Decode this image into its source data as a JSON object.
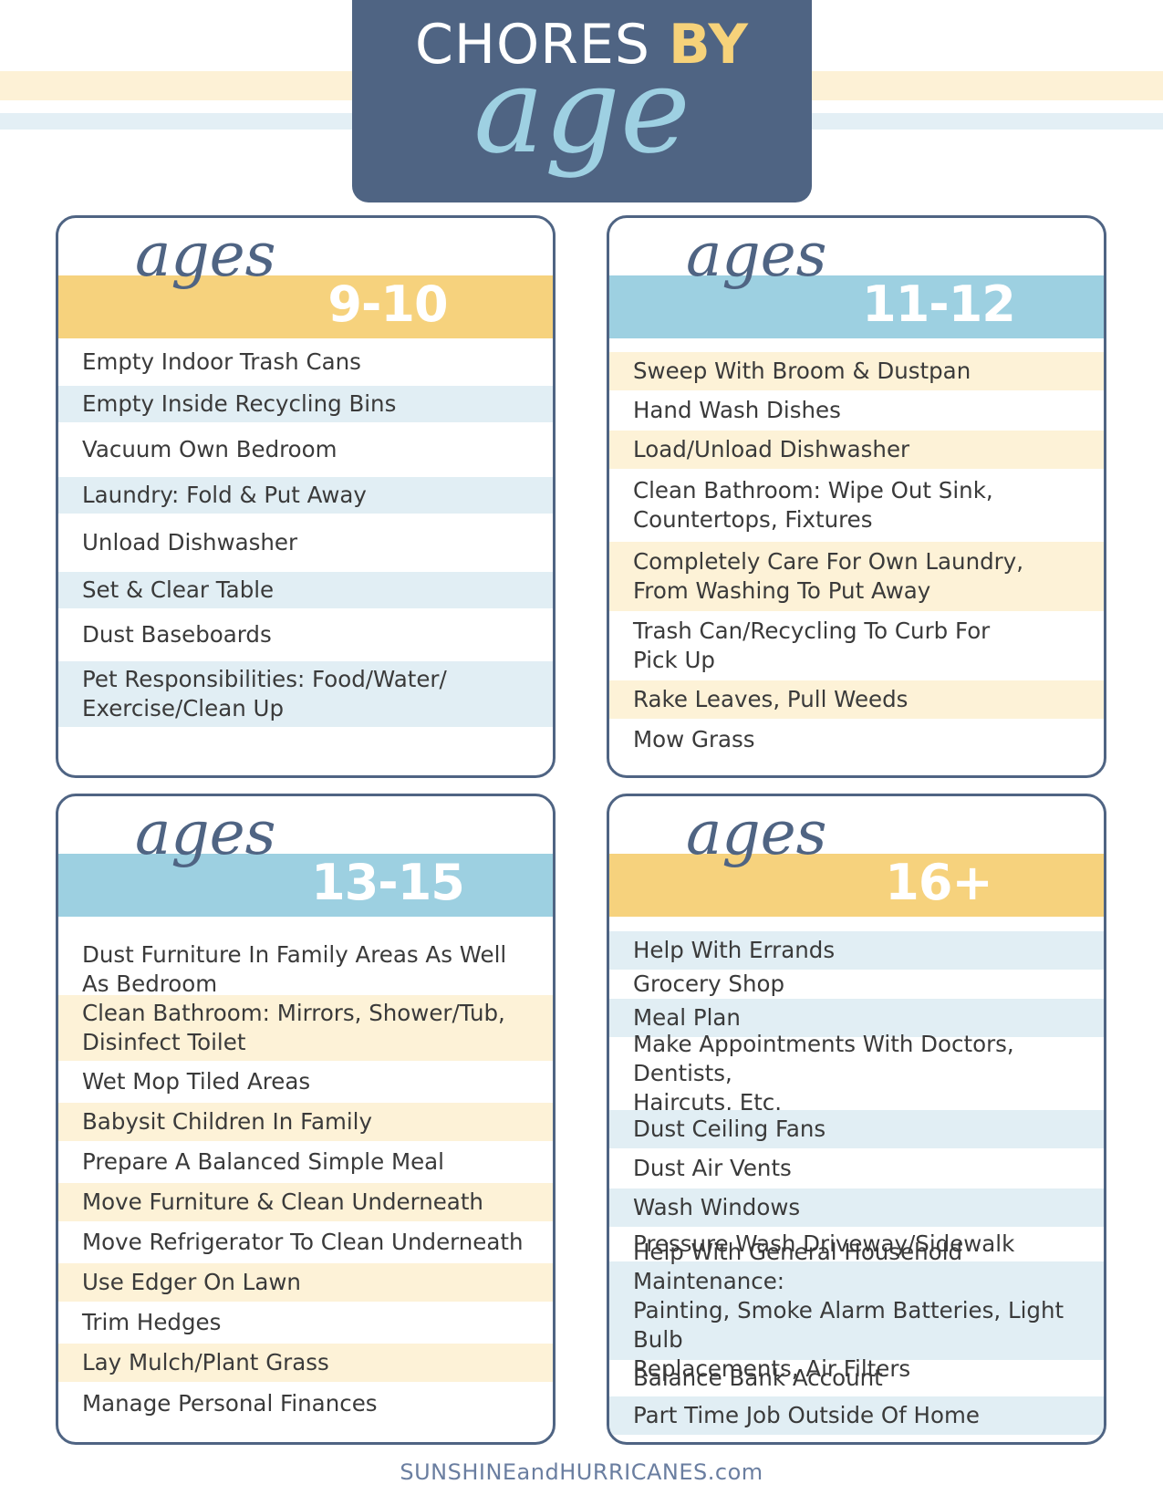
{
  "header": {
    "title_main": "CHORES",
    "title_accent": "BY",
    "title_script": "age"
  },
  "colors": {
    "navy": "#4f6483",
    "yellow": "#f6d27d",
    "blue": "#9dd0e1",
    "row_blue": "#e1eef4",
    "row_yellow": "#fdf2d7"
  },
  "sections": [
    {
      "script": "ages",
      "range": "9-10",
      "band": "yellow",
      "items": [
        "Empty Indoor Trash Cans",
        "Empty Inside Recycling Bins",
        "Vacuum Own Bedroom",
        "Laundry: Fold & Put Away",
        "Unload Dishwasher",
        "Set & Clear Table",
        "Dust Baseboards",
        "Pet Responsibilities: Food/Water/\nExercise/Clean Up"
      ]
    },
    {
      "script": "ages",
      "range": "11-12",
      "band": "blue",
      "items": [
        "Sweep With Broom & Dustpan",
        "Hand Wash Dishes",
        "Load/Unload Dishwasher",
        "Clean Bathroom: Wipe Out Sink,\nCountertops, Fixtures",
        "Completely Care For Own Laundry,\nFrom Washing To Put Away",
        "Trash Can/Recycling To Curb For\nPick Up",
        "Rake Leaves, Pull Weeds",
        "Mow Grass"
      ]
    },
    {
      "script": "ages",
      "range": "13-15",
      "band": "blue",
      "items": [
        "Dust Furniture In Family Areas As Well\nAs Bedroom",
        "Clean Bathroom: Mirrors, Shower/Tub,\nDisinfect Toilet",
        "Wet Mop Tiled Areas",
        "Babysit Children In Family",
        "Prepare A Balanced Simple Meal",
        "Move Furniture & Clean Underneath",
        "Move Refrigerator To Clean Underneath",
        "Use Edger On Lawn",
        "Trim Hedges",
        "Lay Mulch/Plant Grass",
        "Manage Personal Finances"
      ]
    },
    {
      "script": "ages",
      "range": "16+",
      "band": "yellow",
      "items": [
        "Help With Errands",
        "Grocery Shop",
        "Meal Plan",
        "Make Appointments With Doctors, Dentists,\nHaircuts, Etc.",
        "Dust Ceiling Fans",
        "Dust Air Vents",
        "Wash Windows",
        "Pressure Wash Driveway/Sidewalk",
        "Help With General Household Maintenance:\nPainting, Smoke Alarm Batteries, Light Bulb\nReplacements, Air Filters",
        "Balance Bank Account",
        "Part Time Job Outside Of Home"
      ]
    }
  ],
  "footer": "SUNSHINEandHURRICANES.com"
}
